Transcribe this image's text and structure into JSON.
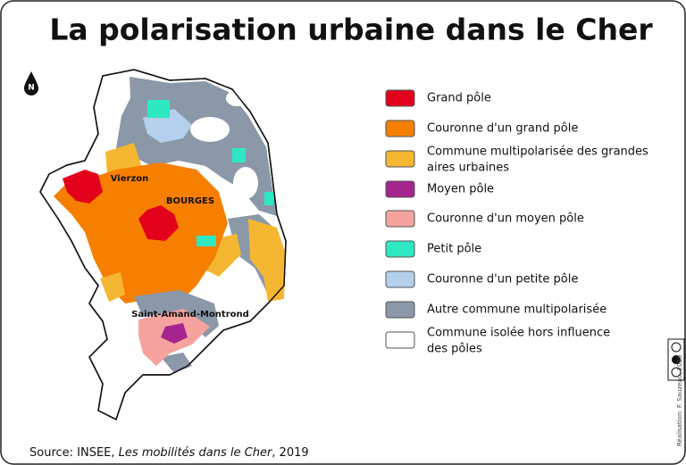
{
  "title": "La polarisation urbaine dans le Cher",
  "north": "N",
  "legend": [
    {
      "label": "Grand pôle",
      "color": "#e3001b"
    },
    {
      "label": "Couronne d'un grand pôle",
      "color": "#f77f00"
    },
    {
      "label": [
        "Commune multipolarisée des grandes",
        "aires urbaines"
      ],
      "color": "#f5b731"
    },
    {
      "label": "Moyen pôle",
      "color": "#a5248f"
    },
    {
      "label": "Couronne d'un moyen pôle",
      "color": "#f6a3a0"
    },
    {
      "label": "Petit pôle",
      "color": "#2ee8c4"
    },
    {
      "label": "Couronne d'un petite pôle",
      "color": "#b5d0ec"
    },
    {
      "label": "Autre commune multipolarisée",
      "color": "#8a98a8"
    },
    {
      "label": [
        "Commune isolée hors influence",
        "des pôles"
      ],
      "color": "#ffffff"
    }
  ],
  "places": [
    "Vierzon",
    "BOURGES",
    "Saint-Amand-Montrond"
  ],
  "source": {
    "prefix": "Source: INSEE, ",
    "work": "Les mobilités dans le Cher",
    "suffix": ", 2019"
  },
  "credit": "Réalisation: F. Sauzeau, 2026"
}
